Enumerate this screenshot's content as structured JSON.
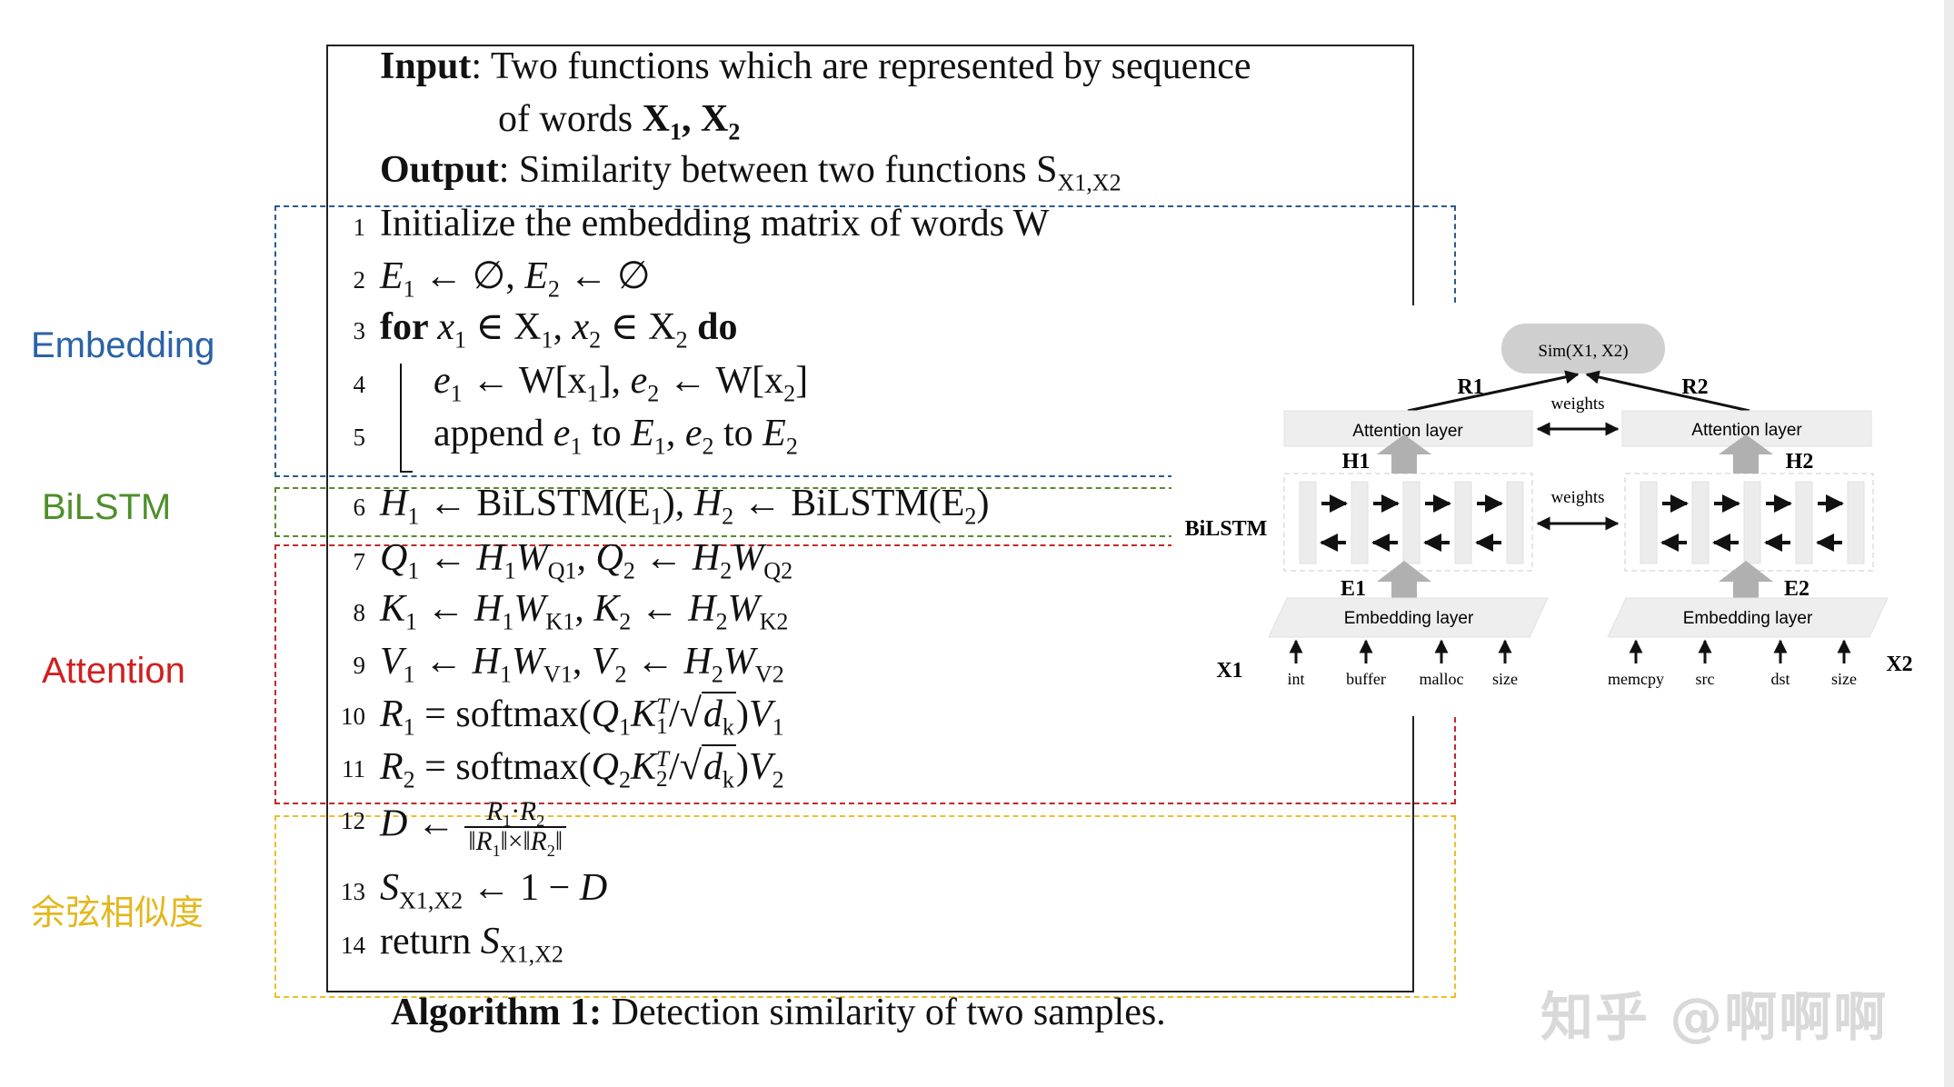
{
  "side_labels": {
    "embedding": "Embedding",
    "bilstm": "BiLSTM",
    "attention": "Attention",
    "cosine": "余弦相似度"
  },
  "section_colors": {
    "embedding": "#2b5a8c",
    "bilstm": "#5a8a2e",
    "attention": "#c0282b",
    "cosine": "#e8c02a"
  },
  "algorithm": {
    "header": [
      [
        [
          "b",
          "Input"
        ],
        [
          "t",
          ": Two functions which are represented by sequence"
        ]
      ],
      [
        [
          "t",
          "of words "
        ],
        [
          "b",
          "X"
        ],
        [
          "sub",
          "1",
          true
        ],
        [
          "b",
          ", X"
        ],
        [
          "sub",
          "2",
          true
        ]
      ],
      [
        [
          "b",
          "Output"
        ],
        [
          "t",
          ": Similarity between two functions "
        ],
        [
          "t",
          "S"
        ],
        [
          "sub",
          "X1,X2"
        ]
      ]
    ],
    "lines": [
      {
        "num": "1",
        "segs": [
          [
            "t",
            "Initialize the embedding matrix of words W"
          ]
        ]
      },
      {
        "num": "2",
        "segs": [
          [
            "i",
            "E"
          ],
          [
            "sub",
            "1"
          ],
          [
            "t",
            " ← ∅, "
          ],
          [
            "i",
            "E"
          ],
          [
            "sub",
            "2"
          ],
          [
            "t",
            " ← ∅"
          ]
        ]
      },
      {
        "num": "3",
        "segs": [
          [
            "b",
            "for "
          ],
          [
            "i",
            "x"
          ],
          [
            "sub",
            "1"
          ],
          [
            "t",
            " ∈ X"
          ],
          [
            "sub",
            "1"
          ],
          [
            "t",
            ", "
          ],
          [
            "i",
            "x"
          ],
          [
            "sub",
            "2"
          ],
          [
            "t",
            " ∈ X"
          ],
          [
            "sub",
            "2"
          ],
          [
            "b",
            " do"
          ]
        ]
      },
      {
        "num": "4",
        "segs": [
          [
            "i",
            "e"
          ],
          [
            "sub",
            "1"
          ],
          [
            "t",
            " ← W[x"
          ],
          [
            "sub",
            "1"
          ],
          [
            "t",
            "], "
          ],
          [
            "i",
            "e"
          ],
          [
            "sub",
            "2"
          ],
          [
            "t",
            " ← W[x"
          ],
          [
            "sub",
            "2"
          ],
          [
            "t",
            "]"
          ]
        ]
      },
      {
        "num": "5",
        "segs": [
          [
            "t",
            "append "
          ],
          [
            "i",
            "e"
          ],
          [
            "sub",
            "1"
          ],
          [
            "t",
            " to "
          ],
          [
            "i",
            "E"
          ],
          [
            "sub",
            "1"
          ],
          [
            "t",
            ", "
          ],
          [
            "i",
            "e"
          ],
          [
            "sub",
            "2"
          ],
          [
            "t",
            " to "
          ],
          [
            "i",
            "E"
          ],
          [
            "sub",
            "2"
          ]
        ]
      },
      {
        "num": "6",
        "segs": [
          [
            "i",
            "H"
          ],
          [
            "sub",
            "1"
          ],
          [
            "t",
            " ← BiLSTM(E"
          ],
          [
            "sub",
            "1"
          ],
          [
            "t",
            "), "
          ],
          [
            "i",
            "H"
          ],
          [
            "sub",
            "2"
          ],
          [
            "t",
            " ← BiLSTM(E"
          ],
          [
            "sub",
            "2"
          ],
          [
            "t",
            ")"
          ]
        ]
      },
      {
        "num": "7",
        "segs": [
          [
            "i",
            "Q"
          ],
          [
            "sub",
            "1"
          ],
          [
            "t",
            " ← "
          ],
          [
            "i",
            "H"
          ],
          [
            "sub",
            "1"
          ],
          [
            "i",
            "W"
          ],
          [
            "sub",
            "Q1"
          ],
          [
            "t",
            ", "
          ],
          [
            "i",
            "Q"
          ],
          [
            "sub",
            "2"
          ],
          [
            "t",
            " ← "
          ],
          [
            "i",
            "H"
          ],
          [
            "sub",
            "2"
          ],
          [
            "i",
            "W"
          ],
          [
            "sub",
            "Q2"
          ]
        ]
      },
      {
        "num": "8",
        "segs": [
          [
            "i",
            "K"
          ],
          [
            "sub",
            "1"
          ],
          [
            "t",
            " ← "
          ],
          [
            "i",
            "H"
          ],
          [
            "sub",
            "1"
          ],
          [
            "i",
            "W"
          ],
          [
            "sub",
            "K1"
          ],
          [
            "t",
            ", "
          ],
          [
            "i",
            "K"
          ],
          [
            "sub",
            "2"
          ],
          [
            "t",
            " ← "
          ],
          [
            "i",
            "H"
          ],
          [
            "sub",
            "2"
          ],
          [
            "i",
            "W"
          ],
          [
            "sub",
            "K2"
          ]
        ]
      },
      {
        "num": "9",
        "segs": [
          [
            "i",
            "V"
          ],
          [
            "sub",
            "1"
          ],
          [
            "t",
            " ← "
          ],
          [
            "i",
            "H"
          ],
          [
            "sub",
            "1"
          ],
          [
            "i",
            "W"
          ],
          [
            "sub",
            "V1"
          ],
          [
            "t",
            ", "
          ],
          [
            "i",
            "V"
          ],
          [
            "sub",
            "2"
          ],
          [
            "t",
            " ← "
          ],
          [
            "i",
            "H"
          ],
          [
            "sub",
            "2"
          ],
          [
            "i",
            "W"
          ],
          [
            "sub",
            "V2"
          ]
        ]
      },
      {
        "num": "10",
        "segs": [
          [
            "i",
            "R"
          ],
          [
            "sub",
            "1"
          ],
          [
            "t",
            " = softmax("
          ],
          [
            "i",
            "Q"
          ],
          [
            "sub",
            "1"
          ],
          [
            "i",
            "K"
          ],
          [
            "ss",
            "T",
            "1"
          ],
          [
            "t",
            "/"
          ],
          [
            "sqrt",
            [
              [
                "i",
                "d"
              ],
              [
                "sub",
                "k"
              ]
            ]
          ],
          [
            "t",
            ")"
          ],
          [
            "i",
            "V"
          ],
          [
            "sub",
            "1"
          ]
        ]
      },
      {
        "num": "11",
        "segs": [
          [
            "i",
            "R"
          ],
          [
            "sub",
            "2"
          ],
          [
            "t",
            " = softmax("
          ],
          [
            "i",
            "Q"
          ],
          [
            "sub",
            "2"
          ],
          [
            "i",
            "K"
          ],
          [
            "ss",
            "T",
            "2"
          ],
          [
            "t",
            "/"
          ],
          [
            "sqrt",
            [
              [
                "i",
                "d"
              ],
              [
                "sub",
                "k"
              ]
            ]
          ],
          [
            "t",
            ")"
          ],
          [
            "i",
            "V"
          ],
          [
            "sub",
            "2"
          ]
        ]
      },
      {
        "num": "12",
        "segs": [
          [
            "i",
            "D"
          ],
          [
            "t",
            " ← "
          ],
          [
            "frac",
            [
              [
                "i",
                "R"
              ],
              [
                "sub",
                "1"
              ],
              [
                "t",
                "·"
              ],
              [
                "i",
                "R"
              ],
              [
                "sub",
                "2"
              ]
            ],
            [
              [
                "t",
                "‖"
              ],
              [
                "i",
                "R"
              ],
              [
                "sub",
                "1"
              ],
              [
                "t",
                "‖×‖"
              ],
              [
                "i",
                "R"
              ],
              [
                "sub",
                "2"
              ],
              [
                "t",
                "‖"
              ]
            ]
          ]
        ]
      },
      {
        "num": "13",
        "segs": [
          [
            "i",
            "S"
          ],
          [
            "sub",
            "X1,X2"
          ],
          [
            "t",
            " ← 1 − "
          ],
          [
            "i",
            "D"
          ]
        ]
      },
      {
        "num": "14",
        "segs": [
          [
            "t",
            "return "
          ],
          [
            "i",
            "S"
          ],
          [
            "sub",
            "X1,X2"
          ]
        ]
      }
    ],
    "caption_bold": "Algorithm 1:",
    "caption_text": " Detection similarity of two samples."
  },
  "diagram": {
    "sim": "Sim(X1, X2)",
    "r1": "R1",
    "r2": "R2",
    "weights_top": "weights",
    "weights_mid": "weights",
    "attention_left": "Attention layer",
    "attention_right": "Attention layer",
    "h1": "H1",
    "h2": "H2",
    "bilstm": "BiLSTM",
    "e1": "E1",
    "e2": "E2",
    "embedding_left": "Embedding layer",
    "embedding_right": "Embedding layer",
    "x1": "X1",
    "x2": "X2",
    "words_left": [
      "int",
      "buffer",
      "malloc",
      "size"
    ],
    "words_right": [
      "memcpy",
      "src",
      "dst",
      "size"
    ]
  },
  "watermark": "知乎 @啊啊啊"
}
